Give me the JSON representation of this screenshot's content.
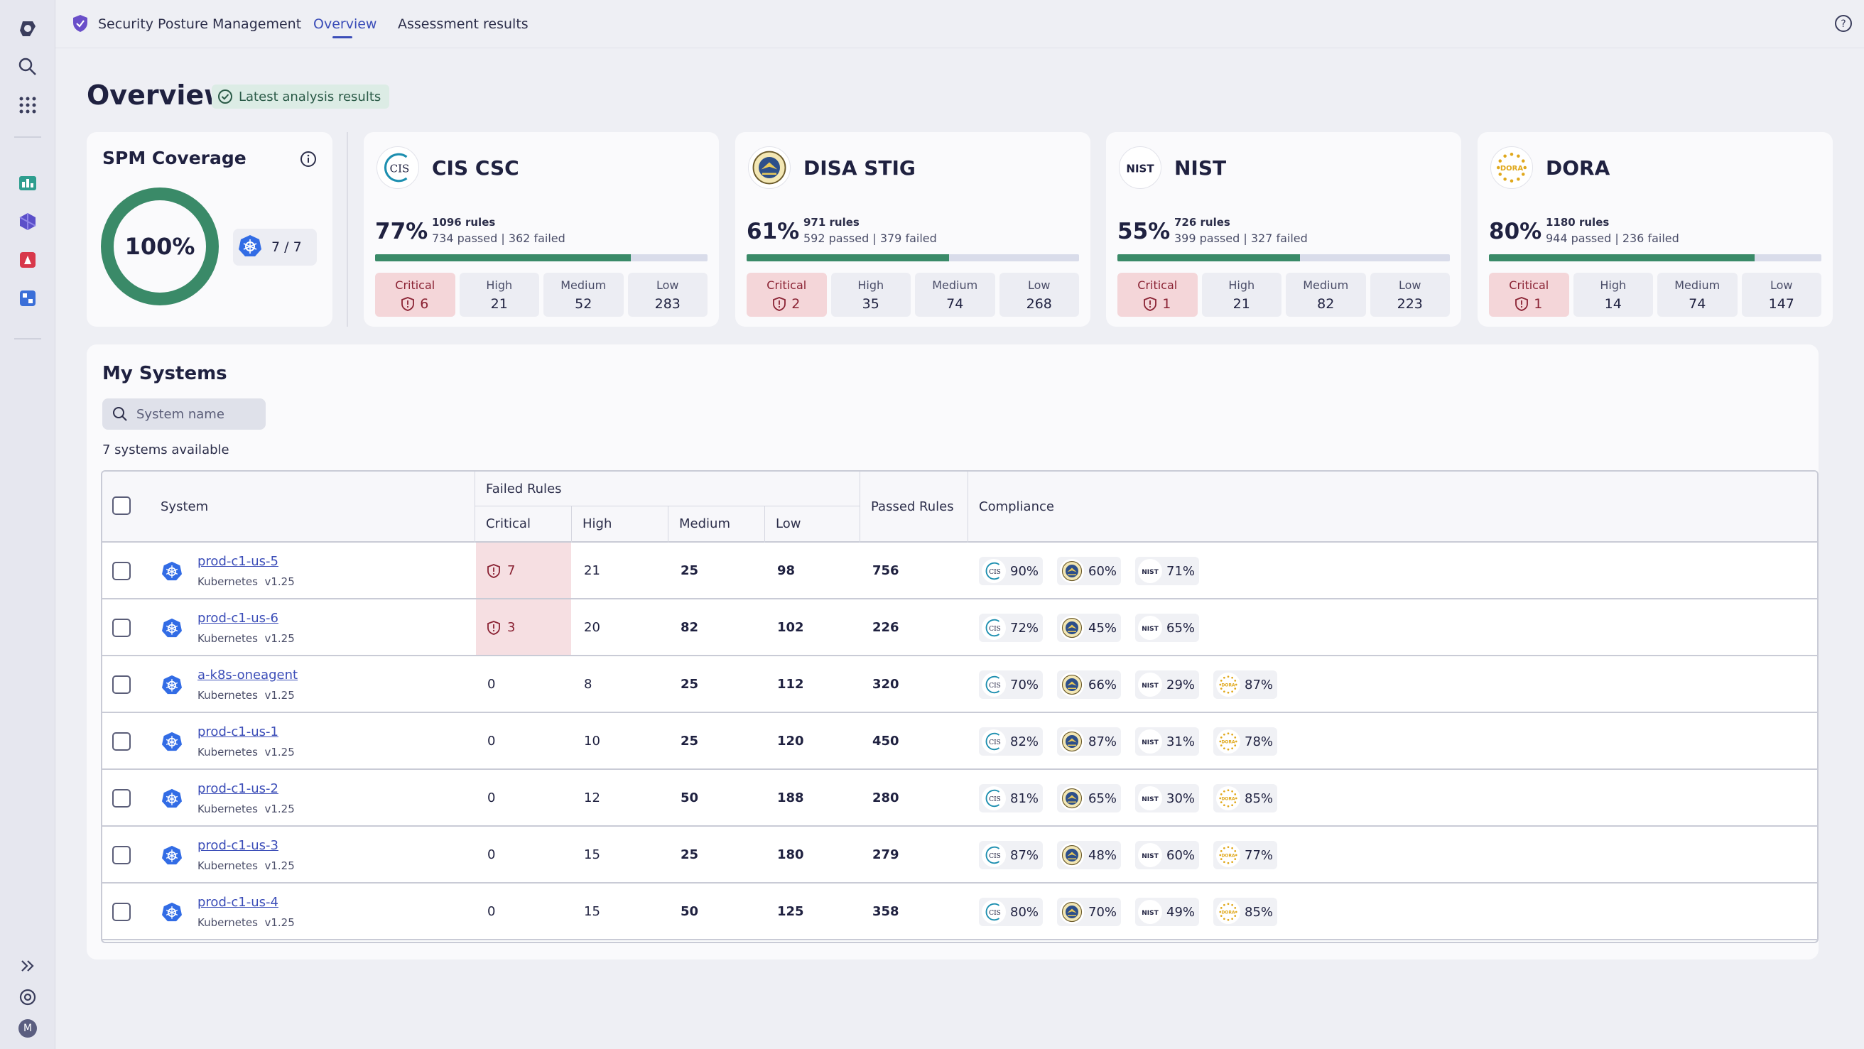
{
  "app": {
    "title": "Security Posture Management"
  },
  "tabs": [
    {
      "label": "Overview"
    },
    {
      "label": "Assessment results"
    }
  ],
  "page": {
    "title": "Overview",
    "badge": "Latest analysis results"
  },
  "coverage": {
    "title": "SPM Coverage",
    "percent": "100%",
    "systems_ratio": "7 / 7"
  },
  "frameworks": [
    {
      "name": "CIS CSC",
      "logo_text": "CIS",
      "percent": "77%",
      "rules": "1096 rules",
      "passed_failed": "734 passed | 362 failed",
      "progress": 0.77,
      "critical": "6",
      "high": "21",
      "medium": "52",
      "low": "283"
    },
    {
      "name": "DISA STIG",
      "logo_text": "",
      "percent": "61%",
      "rules": "971 rules",
      "passed_failed": "592 passed | 379 failed",
      "progress": 0.61,
      "critical": "2",
      "high": "35",
      "medium": "74",
      "low": "268"
    },
    {
      "name": "NIST",
      "logo_text": "NIST",
      "percent": "55%",
      "rules": "726 rules",
      "passed_failed": "399 passed | 327 failed",
      "progress": 0.55,
      "critical": "1",
      "high": "21",
      "medium": "82",
      "low": "223"
    },
    {
      "name": "DORA",
      "logo_text": "DORA",
      "percent": "80%",
      "rules": "1180 rules",
      "passed_failed": "944 passed | 236 failed",
      "progress": 0.8,
      "critical": "1",
      "high": "14",
      "medium": "74",
      "low": "147"
    }
  ],
  "severity_labels": {
    "critical": "Critical",
    "high": "High",
    "medium": "Medium",
    "low": "Low"
  },
  "systems": {
    "title": "My Systems",
    "search_placeholder": "System name",
    "available": "7 systems available",
    "headers": {
      "system": "System",
      "failed_rules": "Failed Rules",
      "critical": "Critical",
      "high": "High",
      "medium": "Medium",
      "low": "Low",
      "passed": "Passed Rules",
      "compliance": "Compliance"
    },
    "rows": [
      {
        "name": "prod-c1-us-5",
        "type": "Kubernetes",
        "version": "v1.25",
        "critical": "7",
        "high": "21",
        "medium": "25",
        "low": "98",
        "passed": "756",
        "cis": "90%",
        "disa": "60%",
        "nist": "71%",
        "dora": ""
      },
      {
        "name": "prod-c1-us-6",
        "type": "Kubernetes",
        "version": "v1.25",
        "critical": "3",
        "high": "20",
        "medium": "82",
        "low": "102",
        "passed": "226",
        "cis": "72%",
        "disa": "45%",
        "nist": "65%",
        "dora": ""
      },
      {
        "name": "a-k8s-oneagent",
        "type": "Kubernetes",
        "version": "v1.25",
        "critical": "0",
        "high": "8",
        "medium": "25",
        "low": "112",
        "passed": "320",
        "cis": "70%",
        "disa": "66%",
        "nist": "29%",
        "dora": "87%"
      },
      {
        "name": "prod-c1-us-1",
        "type": "Kubernetes",
        "version": "v1.25",
        "critical": "0",
        "high": "10",
        "medium": "25",
        "low": "120",
        "passed": "450",
        "cis": "82%",
        "disa": "87%",
        "nist": "31%",
        "dora": "78%"
      },
      {
        "name": "prod-c1-us-2",
        "type": "Kubernetes",
        "version": "v1.25",
        "critical": "0",
        "high": "12",
        "medium": "50",
        "low": "188",
        "passed": "280",
        "cis": "81%",
        "disa": "65%",
        "nist": "30%",
        "dora": "85%"
      },
      {
        "name": "prod-c1-us-3",
        "type": "Kubernetes",
        "version": "v1.25",
        "critical": "0",
        "high": "15",
        "medium": "25",
        "low": "180",
        "passed": "279",
        "cis": "87%",
        "disa": "48%",
        "nist": "60%",
        "dora": "77%"
      },
      {
        "name": "prod-c1-us-4",
        "type": "Kubernetes",
        "version": "v1.25",
        "critical": "0",
        "high": "15",
        "medium": "50",
        "low": "125",
        "passed": "358",
        "cis": "80%",
        "disa": "70%",
        "nist": "49%",
        "dora": "85%"
      }
    ]
  },
  "rail": {
    "avatar_letter": "M"
  },
  "colors": {
    "accent": "#3b4db8",
    "success": "#3a8a68",
    "critical_bg": "#f4d6d9",
    "critical_text": "#8a2233",
    "k8s_blue": "#326ce5"
  }
}
